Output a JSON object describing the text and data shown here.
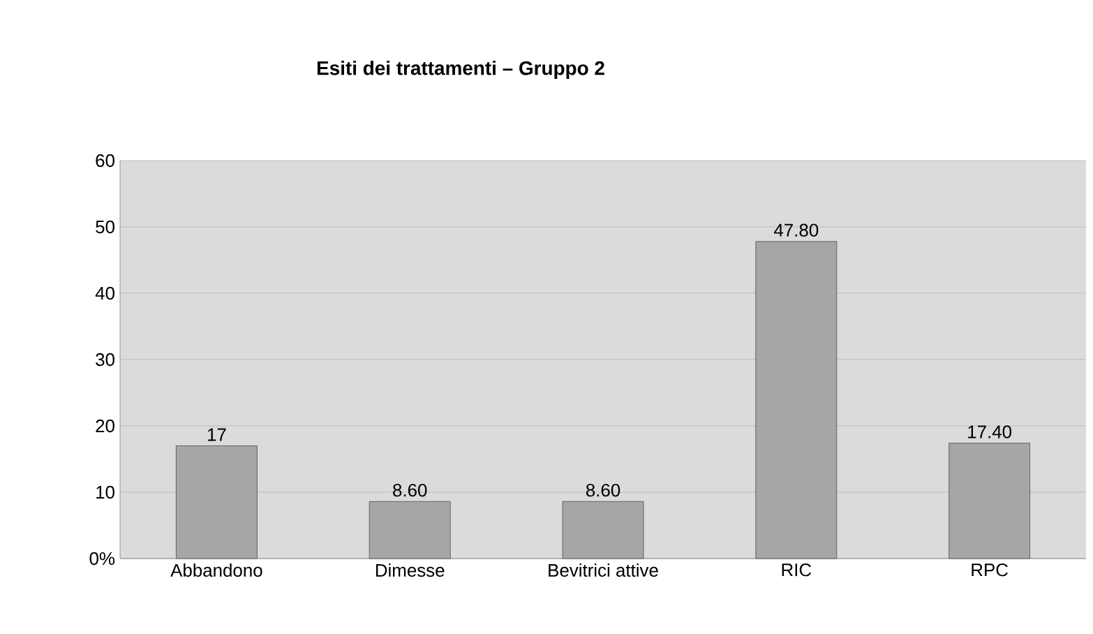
{
  "chart_data": {
    "type": "bar",
    "title": "Esiti dei trattamenti – Gruppo 2",
    "categories": [
      "Abbandono",
      "Dimesse",
      "Bevitrici attive",
      "RIC",
      "RPC"
    ],
    "values": [
      17,
      8.6,
      8.6,
      47.8,
      17.4
    ],
    "value_labels": [
      "17",
      "8.60",
      "8.60",
      "47.80",
      "17.40"
    ],
    "color": "#a6a6a6",
    "ylim": [
      0,
      60
    ],
    "yticks": [
      {
        "value": 0,
        "label": "0%"
      },
      10,
      20,
      30,
      40,
      50,
      60
    ],
    "grid": "y"
  }
}
